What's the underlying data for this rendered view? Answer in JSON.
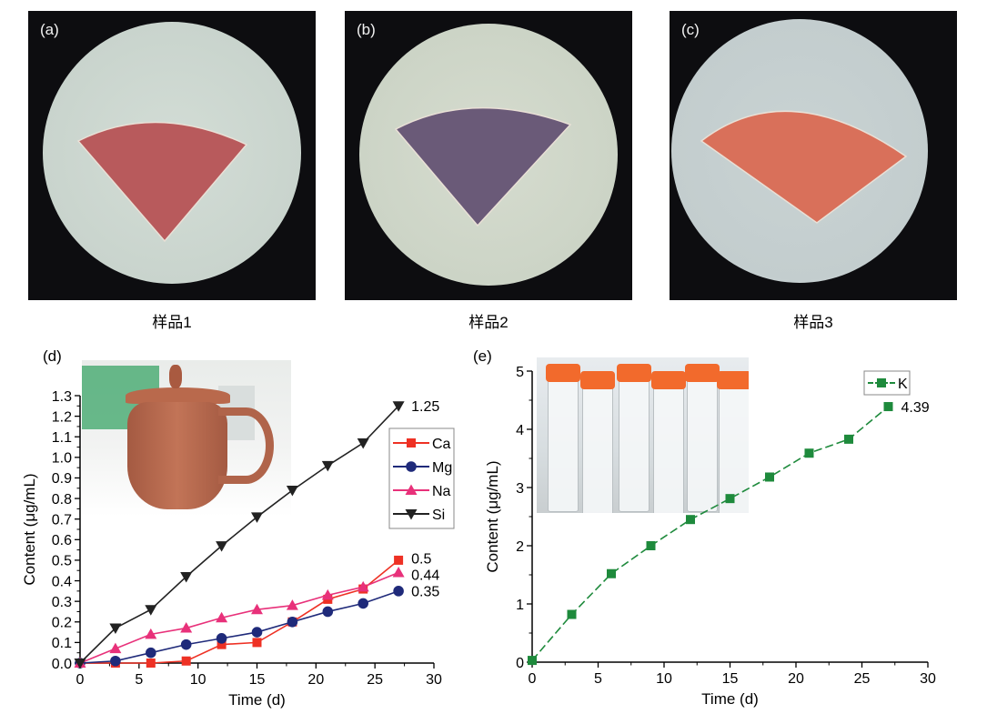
{
  "photos": [
    {
      "label": "(a)",
      "caption": "样品1",
      "sample_color": "#b85a5c"
    },
    {
      "label": "(b)",
      "caption": "样品2",
      "sample_color": "#6a5a78"
    },
    {
      "label": "(c)",
      "caption": "样品3",
      "sample_color": "#d9705a"
    }
  ],
  "chart_data": [
    {
      "panel_label": "(d)",
      "type": "line",
      "title": "",
      "xlabel": "Time (d)",
      "ylabel": "Content (μg/mL)",
      "xlim": [
        0,
        30
      ],
      "ylim": [
        0,
        1.3
      ],
      "xticks": [
        "0",
        "5",
        "10",
        "15",
        "20",
        "25",
        "30"
      ],
      "yticks": [
        "0.0",
        "0.1",
        "0.2",
        "0.3",
        "0.4",
        "0.5",
        "0.6",
        "0.7",
        "0.8",
        "0.9",
        "1.0",
        "1.1",
        "1.2",
        "1.3"
      ],
      "x": [
        0,
        3,
        6,
        9,
        12,
        15,
        18,
        21,
        24,
        27
      ],
      "legend_position": "right",
      "series": [
        {
          "name": "Ca",
          "color": "#ee3124",
          "marker": "square",
          "values": [
            0,
            0,
            0,
            0.01,
            0.09,
            0.1,
            0.2,
            0.31,
            0.36,
            0.5
          ],
          "end_label": "0.5"
        },
        {
          "name": "Mg",
          "color": "#1f2a7a",
          "marker": "circle",
          "values": [
            0,
            0.01,
            0.05,
            0.09,
            0.12,
            0.15,
            0.2,
            0.25,
            0.29,
            0.35
          ],
          "end_label": "0.35"
        },
        {
          "name": "Na",
          "color": "#e8317a",
          "marker": "triangle-up",
          "values": [
            0,
            0.07,
            0.14,
            0.17,
            0.22,
            0.26,
            0.28,
            0.33,
            0.37,
            0.44
          ],
          "end_label": "0.44"
        },
        {
          "name": "Si",
          "color": "#222222",
          "marker": "triangle-down",
          "values": [
            0,
            0.17,
            0.26,
            0.42,
            0.57,
            0.71,
            0.84,
            0.96,
            1.07,
            1.25
          ],
          "end_label": "1.25"
        }
      ]
    },
    {
      "panel_label": "(e)",
      "type": "line",
      "title": "",
      "xlabel": "Time (d)",
      "ylabel": "Content (μg/mL)",
      "xlim": [
        0,
        30
      ],
      "ylim": [
        0,
        5
      ],
      "xticks": [
        "0",
        "5",
        "10",
        "15",
        "20",
        "25",
        "30"
      ],
      "yticks": [
        "0",
        "1",
        "2",
        "3",
        "4",
        "5"
      ],
      "x": [
        0,
        3,
        6,
        9,
        12,
        15,
        18,
        21,
        24,
        27
      ],
      "legend_position": "top-right",
      "series": [
        {
          "name": "K",
          "color": "#1e8a3c",
          "marker": "square",
          "dashed": true,
          "values": [
            0.03,
            0.82,
            1.52,
            2.0,
            2.45,
            2.81,
            3.18,
            3.59,
            3.83,
            4.39
          ],
          "end_label": "4.39"
        }
      ]
    }
  ]
}
